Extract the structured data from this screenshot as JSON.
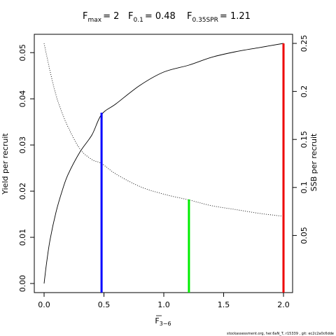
{
  "chart_data": {
    "type": "line",
    "title": {
      "fmax_label": "F",
      "fmax_sub": "max",
      "fmax_value": "= 2",
      "f01_label": "F",
      "f01_sub": "0.1",
      "f01_value": "= 0.48",
      "fspr_label": "F",
      "fspr_sub": "0.35SPR",
      "fspr_value": "= 1.21"
    },
    "xlabel": "F",
    "xlabel_sub": "3−6",
    "ylabel_left": "Yield per recruit",
    "ylabel_right": "SSB per recruit",
    "xlim": [
      0,
      2
    ],
    "ylim_left": [
      0,
      0.052
    ],
    "ylim_right": [
      0,
      0.25
    ],
    "x_ticks": [
      {
        "value": 0,
        "label": "0.0"
      },
      {
        "value": 0.5,
        "label": "0.5"
      },
      {
        "value": 1.0,
        "label": "1.0"
      },
      {
        "value": 1.5,
        "label": "1.5"
      },
      {
        "value": 2.0,
        "label": "2.0"
      }
    ],
    "y_left_ticks": [
      {
        "value": 0,
        "label": "0.00"
      },
      {
        "value": 0.01,
        "label": "0.01"
      },
      {
        "value": 0.02,
        "label": "0.02"
      },
      {
        "value": 0.03,
        "label": "0.03"
      },
      {
        "value": 0.04,
        "label": "0.04"
      },
      {
        "value": 0.05,
        "label": "0.05"
      }
    ],
    "y_right_ticks": [
      {
        "value": 0.05,
        "label": "0.05"
      },
      {
        "value": 0.1,
        "label": "0.1"
      },
      {
        "value": 0.15,
        "label": "0.15"
      },
      {
        "value": 0.2,
        "label": "0.2"
      },
      {
        "value": 0.25,
        "label": "0.25"
      }
    ],
    "series": [
      {
        "style": "solid",
        "axis": "left",
        "color": "#000000",
        "x": [
          0,
          0.02,
          0.05,
          0.1,
          0.15,
          0.2,
          0.3,
          0.4,
          0.48,
          0.6,
          0.8,
          1.0,
          1.21,
          1.4,
          1.6,
          1.8,
          2.0
        ],
        "y": [
          0.0,
          0.0043,
          0.0095,
          0.0155,
          0.02,
          0.0236,
          0.0285,
          0.0322,
          0.0366,
          0.0389,
          0.0429,
          0.0458,
          0.0473,
          0.049,
          0.0502,
          0.0511,
          0.052
        ]
      },
      {
        "style": "dotted",
        "axis": "right",
        "color": "#000000",
        "x": [
          0,
          0.05,
          0.1,
          0.15,
          0.2,
          0.3,
          0.4,
          0.48,
          0.6,
          0.8,
          1.0,
          1.21,
          1.4,
          1.6,
          1.8,
          2.0
        ],
        "y": [
          0.25,
          0.221,
          0.196,
          0.178,
          0.163,
          0.14,
          0.129,
          0.125,
          0.114,
          0.101,
          0.093,
          0.087,
          0.081,
          0.077,
          0.073,
          0.07
        ]
      }
    ],
    "reference_lines": [
      {
        "x": 0.48,
        "y_top": 0.037,
        "axis": "left",
        "color": "#0000ff"
      },
      {
        "x": 1.21,
        "y_top": 0.0875,
        "axis": "right",
        "color": "#00ee00"
      },
      {
        "x": 2.0,
        "y_top": 0.052,
        "axis": "left",
        "color": "#ee0000"
      }
    ],
    "footer": "stockassessment.org, her.6aN_T, r15339 , git: ec2c2a0c6dde"
  }
}
